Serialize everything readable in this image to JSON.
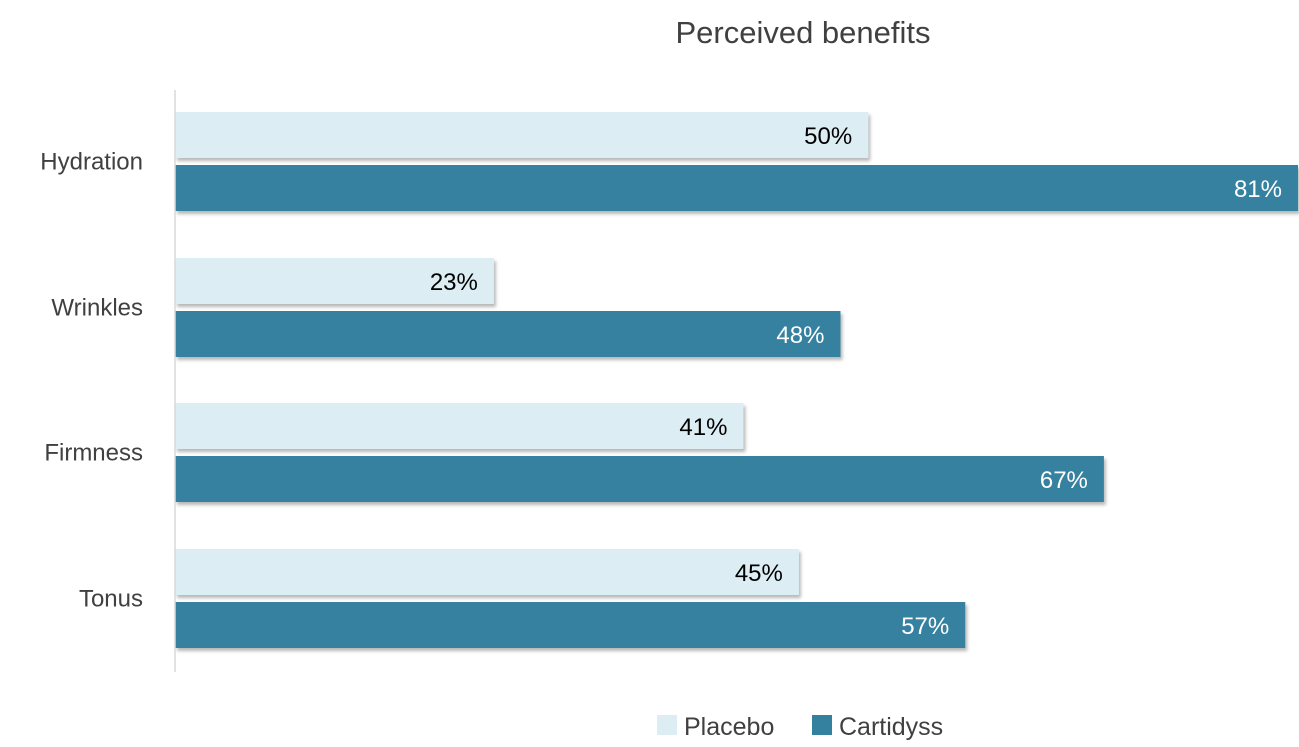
{
  "chart_data": {
    "type": "bar",
    "orientation": "horizontal",
    "title": "Perceived benefits",
    "categories": [
      "Hydration",
      "Wrinkles",
      "Firmness",
      "Tonus"
    ],
    "series": [
      {
        "name": "Placebo",
        "values": [
          50,
          23,
          41,
          45
        ],
        "labels": [
          "50%",
          "23%",
          "41%",
          "45%"
        ],
        "color": "#DCEDF3",
        "label_color": "#000000"
      },
      {
        "name": "Cartidyss",
        "values": [
          81,
          48,
          67,
          57
        ],
        "labels": [
          "81%",
          "48%",
          "67%",
          "57%"
        ],
        "color": "#34819F",
        "label_color": "#ffffff"
      }
    ],
    "xlim": [
      0,
      81
    ],
    "grid": false,
    "legend": "bottom"
  },
  "colors": {
    "axis": "#d9d9d9",
    "text": "#404040"
  }
}
